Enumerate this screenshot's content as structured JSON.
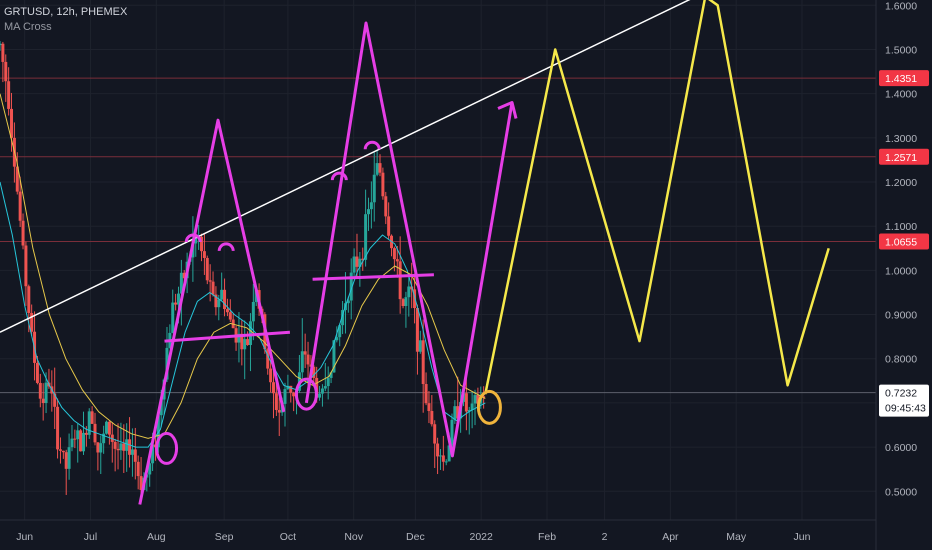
{
  "header": {
    "symbol_line": "GRTUSD, 12h, PHEMEX",
    "indicator": "MA Cross"
  },
  "colors": {
    "background": "#131722",
    "grid": "#1e222d",
    "axis_text": "#b2b5be",
    "candle_up": "#26a69a",
    "candle_down": "#ef5350",
    "ma_fast": "#26c6da",
    "ma_slow": "#e6c84a",
    "trendline": "#ffffff",
    "drawing_pink": "#e63ee6",
    "drawing_yellow": "#f5e84a",
    "level_line": "#7a2e3a",
    "level_badge": "#f23645",
    "price_badge": "#ffffff"
  },
  "chart_data": {
    "type": "line",
    "yaxis": {
      "ticks": [
        "1.6000",
        "1.5000",
        "1.4000",
        "1.3000",
        "1.2000",
        "1.1000",
        "1.0000",
        "0.9000",
        "0.8000",
        "0.7000",
        "0.6000",
        "0.5000"
      ],
      "ylim": [
        0.435,
        1.612
      ]
    },
    "xaxis": {
      "ticks": [
        {
          "label": "Jun",
          "t": 1.2
        },
        {
          "label": "Jul",
          "t": 4.4
        },
        {
          "label": "Aug",
          "t": 7.6
        },
        {
          "label": "Sep",
          "t": 10.9
        },
        {
          "label": "Oct",
          "t": 14.0
        },
        {
          "label": "Nov",
          "t": 17.2
        },
        {
          "label": "Dec",
          "t": 20.2
        },
        {
          "label": "2022",
          "t": 23.4
        },
        {
          "label": "Feb",
          "t": 26.6
        },
        {
          "label": "2",
          "t": 29.4
        },
        {
          "label": "Apr",
          "t": 32.6
        },
        {
          "label": "May",
          "t": 35.8
        },
        {
          "label": "Jun",
          "t": 39.0
        }
      ],
      "xlim": [
        0,
        42.6
      ]
    },
    "levels": [
      {
        "label": "1.4351",
        "y": 1.4351
      },
      {
        "label": "1.2571",
        "y": 1.2571
      },
      {
        "label": "1.0655",
        "y": 1.0655
      }
    ],
    "last_price": {
      "label": "0.7232",
      "y": 0.7232,
      "countdown": "09:45:43"
    },
    "price_series": [
      [
        0,
        1.51
      ],
      [
        0.4,
        1.4
      ],
      [
        0.8,
        1.2
      ],
      [
        1.2,
        1.0
      ],
      [
        1.6,
        0.82
      ],
      [
        2.0,
        0.7
      ],
      [
        2.4,
        0.75
      ],
      [
        2.8,
        0.62
      ],
      [
        3.2,
        0.55
      ],
      [
        3.6,
        0.63
      ],
      [
        4.0,
        0.6
      ],
      [
        4.4,
        0.7
      ],
      [
        4.8,
        0.58
      ],
      [
        5.2,
        0.65
      ],
      [
        5.6,
        0.6
      ],
      [
        6.0,
        0.58
      ],
      [
        6.4,
        0.61
      ],
      [
        6.8,
        0.52
      ],
      [
        7.2,
        0.54
      ],
      [
        7.6,
        0.63
      ],
      [
        8.0,
        0.78
      ],
      [
        8.4,
        0.92
      ],
      [
        8.8,
        0.96
      ],
      [
        9.2,
        1.03
      ],
      [
        9.6,
        1.08
      ],
      [
        10.0,
        1.0
      ],
      [
        10.4,
        0.92
      ],
      [
        10.8,
        0.95
      ],
      [
        11.2,
        0.88
      ],
      [
        11.6,
        0.85
      ],
      [
        12.0,
        0.82
      ],
      [
        12.4,
        0.98
      ],
      [
        12.8,
        0.86
      ],
      [
        13.2,
        0.72
      ],
      [
        13.6,
        0.68
      ],
      [
        14.0,
        0.74
      ],
      [
        14.4,
        0.72
      ],
      [
        14.8,
        0.82
      ],
      [
        15.2,
        0.76
      ],
      [
        15.6,
        0.7
      ],
      [
        16.0,
        0.78
      ],
      [
        16.4,
        0.85
      ],
      [
        16.8,
        0.94
      ],
      [
        17.2,
        1.0
      ],
      [
        17.6,
        1.05
      ],
      [
        18.0,
        1.15
      ],
      [
        18.4,
        1.25
      ],
      [
        18.8,
        1.12
      ],
      [
        19.2,
        1.02
      ],
      [
        19.6,
        0.92
      ],
      [
        20.0,
        0.95
      ],
      [
        20.4,
        0.82
      ],
      [
        20.8,
        0.68
      ],
      [
        21.2,
        0.62
      ],
      [
        21.6,
        0.56
      ],
      [
        22.0,
        0.65
      ],
      [
        22.4,
        0.72
      ],
      [
        22.8,
        0.67
      ],
      [
        23.2,
        0.7
      ],
      [
        23.6,
        0.7232
      ]
    ],
    "series": [
      {
        "points": [
          [
            0,
            1.2
          ],
          [
            0.6,
            1.08
          ],
          [
            1.2,
            0.92
          ],
          [
            1.8,
            0.8
          ],
          [
            2.4,
            0.74
          ],
          [
            3.0,
            0.69
          ],
          [
            3.6,
            0.66
          ],
          [
            4.2,
            0.64
          ],
          [
            4.8,
            0.63
          ],
          [
            5.4,
            0.62
          ],
          [
            6.0,
            0.61
          ],
          [
            6.6,
            0.6
          ],
          [
            7.2,
            0.6
          ],
          [
            7.8,
            0.64
          ],
          [
            8.4,
            0.75
          ],
          [
            9.0,
            0.86
          ],
          [
            9.6,
            0.93
          ],
          [
            10.2,
            0.95
          ],
          [
            10.8,
            0.93
          ],
          [
            11.4,
            0.9
          ],
          [
            12.0,
            0.88
          ],
          [
            12.6,
            0.85
          ],
          [
            13.2,
            0.79
          ],
          [
            13.8,
            0.74
          ],
          [
            14.4,
            0.73
          ],
          [
            15.0,
            0.75
          ],
          [
            15.6,
            0.78
          ],
          [
            16.2,
            0.83
          ],
          [
            16.8,
            0.92
          ],
          [
            17.4,
            1.0
          ],
          [
            18.0,
            1.05
          ],
          [
            18.6,
            1.08
          ],
          [
            19.2,
            1.06
          ],
          [
            19.8,
            1.0
          ],
          [
            20.4,
            0.9
          ],
          [
            21.0,
            0.78
          ],
          [
            21.6,
            0.68
          ],
          [
            22.2,
            0.66
          ],
          [
            22.8,
            0.68
          ],
          [
            23.6,
            0.7
          ]
        ]
      },
      {
        "points": [
          [
            0,
            1.4
          ],
          [
            0.8,
            1.25
          ],
          [
            1.6,
            1.05
          ],
          [
            2.4,
            0.9
          ],
          [
            3.2,
            0.8
          ],
          [
            4.0,
            0.73
          ],
          [
            4.8,
            0.68
          ],
          [
            5.6,
            0.65
          ],
          [
            6.4,
            0.63
          ],
          [
            7.2,
            0.62
          ],
          [
            8.0,
            0.63
          ],
          [
            8.8,
            0.7
          ],
          [
            9.6,
            0.8
          ],
          [
            10.4,
            0.86
          ],
          [
            11.2,
            0.88
          ],
          [
            12.0,
            0.87
          ],
          [
            12.8,
            0.84
          ],
          [
            13.6,
            0.8
          ],
          [
            14.4,
            0.76
          ],
          [
            15.2,
            0.74
          ],
          [
            16.0,
            0.76
          ],
          [
            16.8,
            0.83
          ],
          [
            17.6,
            0.92
          ],
          [
            18.4,
            0.98
          ],
          [
            19.2,
            1.01
          ],
          [
            20.0,
            0.99
          ],
          [
            20.8,
            0.92
          ],
          [
            21.6,
            0.82
          ],
          [
            22.4,
            0.74
          ],
          [
            23.6,
            0.71
          ]
        ]
      }
    ],
    "drawings": {
      "trendline": [
        [
          0,
          0.86
        ],
        [
          34.3,
          1.63
        ]
      ],
      "pink_lines": [
        [
          [
            6.8,
            0.47
          ],
          [
            10.6,
            1.34
          ],
          [
            13.8,
            0.68
          ]
        ],
        [
          [
            14.9,
            0.7
          ],
          [
            17.8,
            1.56
          ],
          [
            22.0,
            0.58
          ],
          [
            24.9,
            1.38
          ]
        ],
        [
          [
            8.0,
            0.84
          ],
          [
            14.1,
            0.86
          ]
        ],
        [
          [
            15.2,
            0.98
          ],
          [
            21.1,
            0.99
          ]
        ]
      ],
      "pink_arcs": [
        [
          9.4,
          1.08
        ],
        [
          11.0,
          1.06
        ],
        [
          16.5,
          1.22
        ],
        [
          18.1,
          1.29
        ]
      ],
      "pink_circles": [
        [
          8.1,
          0.597
        ],
        [
          14.9,
          0.72
        ]
      ],
      "yellow_zigzag": [
        [
          23.6,
          0.72
        ],
        [
          27.0,
          1.5
        ],
        [
          31.1,
          0.84
        ],
        [
          34.3,
          1.62
        ],
        [
          34.9,
          1.6
        ],
        [
          38.3,
          0.74
        ],
        [
          40.3,
          1.05
        ]
      ],
      "yellow_circle": [
        23.8,
        0.69
      ]
    }
  }
}
